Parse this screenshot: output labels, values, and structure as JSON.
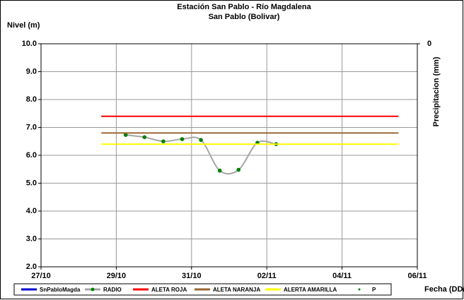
{
  "chart_data": {
    "type": "line",
    "title": "Estación San Pablo - Río Magdalena",
    "subtitle": "San Pablo (Bolivar)",
    "y_label": "Nivel (m)",
    "y2_label": "Precipitacion (mm)",
    "x_label": "Fecha (DD/MM)",
    "xlim": [
      0,
      10
    ],
    "xticks": [
      {
        "value": 0,
        "label": "27/10"
      },
      {
        "value": 2,
        "label": "29/10"
      },
      {
        "value": 4,
        "label": "31/10"
      },
      {
        "value": 6,
        "label": "02/11"
      },
      {
        "value": 8,
        "label": "04/11"
      },
      {
        "value": 10,
        "label": "06/11"
      }
    ],
    "ylim": [
      2,
      10
    ],
    "yticks": [
      {
        "value": 2,
        "label": "2.0"
      },
      {
        "value": 3,
        "label": "3.0"
      },
      {
        "value": 4,
        "label": "4.0"
      },
      {
        "value": 5,
        "label": "5.0"
      },
      {
        "value": 6,
        "label": "6.0"
      },
      {
        "value": 7,
        "label": "7.0"
      },
      {
        "value": 8,
        "label": "8.0"
      },
      {
        "value": 9,
        "label": "9.0"
      },
      {
        "value": 10,
        "label": "10.0"
      }
    ],
    "y2ticks": [
      0
    ],
    "grid": true,
    "series": [
      {
        "name": "SnPabloMagda",
        "color": "#0000cc",
        "x": [],
        "values": []
      },
      {
        "name": "RADIO",
        "color": "#a6a6a6",
        "marker_color": "#008000",
        "x": [
          2.25,
          2.75,
          3.25,
          3.75,
          4.25,
          4.75,
          5.25,
          5.75,
          6.25
        ],
        "values": [
          6.73,
          6.65,
          6.5,
          6.58,
          6.55,
          5.45,
          5.48,
          6.45,
          6.4
        ]
      },
      {
        "name": "ALETA ROJA",
        "color": "#ff0000",
        "x": [
          1.6,
          9.5
        ],
        "values": [
          7.4,
          7.4
        ]
      },
      {
        "name": "ALETA NARANJA",
        "color": "#996633",
        "x": [
          1.6,
          9.5
        ],
        "values": [
          6.8,
          6.8
        ]
      },
      {
        "name": "ALERTA AMARILLA",
        "color": "#ffff00",
        "x": [
          1.6,
          9.5
        ],
        "values": [
          6.4,
          6.4
        ]
      },
      {
        "name": "P",
        "color": "#008000",
        "x": [],
        "values": []
      }
    ]
  }
}
